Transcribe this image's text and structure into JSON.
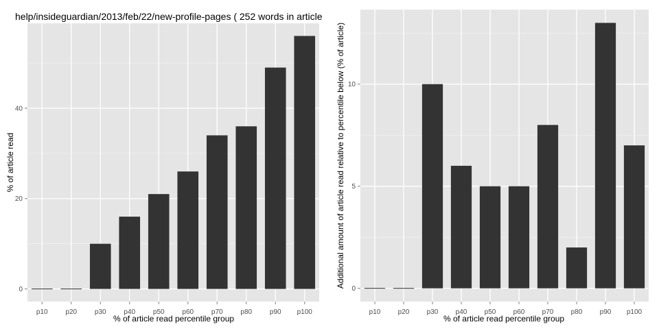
{
  "chart_data": [
    {
      "type": "bar",
      "title": "help/insideguardian/2013/feb/22/new-profile-pages ( 252 words in article",
      "xlabel": "% of article read percentile group",
      "ylabel": "% of article read",
      "categories": [
        "p10",
        "p20",
        "p30",
        "p40",
        "p50",
        "p60",
        "p70",
        "p80",
        "p90",
        "p100"
      ],
      "values": [
        0,
        0,
        10,
        16,
        21,
        26,
        34,
        36,
        49,
        56
      ],
      "ylim": [
        -2.8,
        58.8
      ],
      "yticks": [
        0,
        20,
        40
      ],
      "grid": true,
      "bar_color": "#333333",
      "panel_color": "#e5e5e5"
    },
    {
      "type": "bar",
      "title": "",
      "xlabel": "% of article read percentile group",
      "ylabel": "Additional amount of article read relative to percentile below (% of article)",
      "categories": [
        "p10",
        "p20",
        "p30",
        "p40",
        "p50",
        "p60",
        "p70",
        "p80",
        "p90",
        "p100"
      ],
      "values": [
        0,
        0,
        10,
        6,
        5,
        5,
        8,
        2,
        13,
        7
      ],
      "ylim": [
        -0.65,
        13.65
      ],
      "yticks": [
        0,
        5,
        10
      ],
      "grid": true,
      "bar_color": "#333333",
      "panel_color": "#e5e5e5"
    }
  ]
}
